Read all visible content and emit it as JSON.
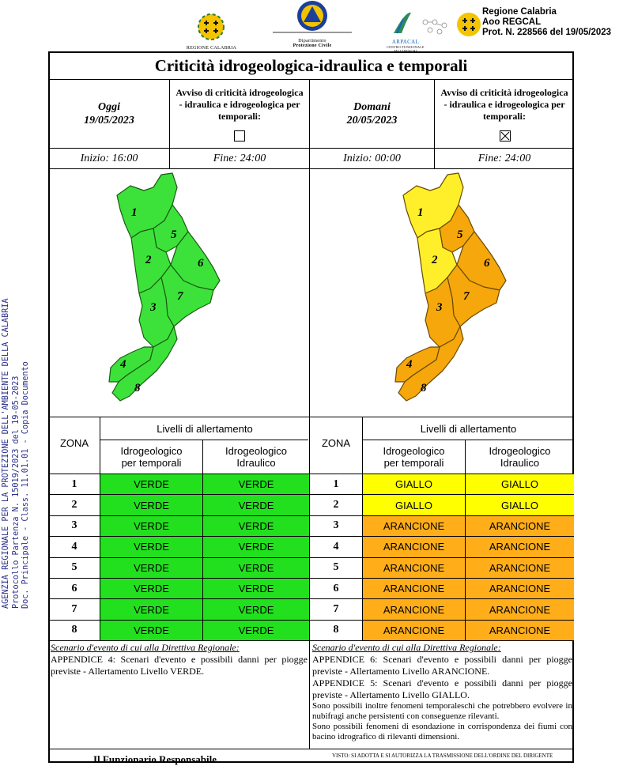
{
  "header": {
    "logo_left_caption": "REGIONE CALABRIA",
    "logo_center_caption_1": "Dipartimento",
    "logo_center_caption_2": "Protezione Civile",
    "logo_right_caption_1": "ARPACAL",
    "logo_right_caption_2": "CENTRO FUNZIONALE MULTIRISCHI",
    "protocol_line_1": "Regione Calabria",
    "protocol_line_2": "Aoo REGCAL",
    "protocol_line_3": "Prot. N. 228566 del 19/05/2023"
  },
  "side_stamp": {
    "line_1": "AGENZIA REGIONALE PER LA PROTEZIONE DELL'AMBIENTE DELLA CALABRIA",
    "line_2": "Protocollo Partenza N. 15019/2023 del 19-05-2023",
    "line_3": "Doc. Principale - Class. 11.01.01  - Copia Documento"
  },
  "title": "Criticità idrogeologica-idraulica e temporali",
  "today": {
    "label": "Oggi",
    "date": "19/05/2023",
    "avviso_text": "Avviso di criticità idrogeologica - idraulica e idrogeologica per temporali:",
    "avviso_checked": false,
    "start": "Inizio: 16:00",
    "end": "Fine: 24:00"
  },
  "tomorrow": {
    "label": "Domani",
    "date": "20/05/2023",
    "avviso_text": "Avviso di criticità idrogeologica - idraulica e idrogeologica per temporali:",
    "avviso_checked": true,
    "start": "Inizio: 00:00",
    "end": "Fine: 24:00"
  },
  "map_zone_labels": [
    "1",
    "2",
    "3",
    "4",
    "5",
    "6",
    "7",
    "8"
  ],
  "table_headers": {
    "zona": "ZONA",
    "livelli": "Livelli di allertamento",
    "col_temporali": "Idrogeologico per temporali",
    "col_idraulico": "Idrogeologico Idraulico"
  },
  "colors": {
    "verde": "#22e01e",
    "giallo": "#ffff00",
    "arancione": "#ffae1a",
    "map_green": "#3ce23a",
    "map_yellow": "#ffef2a",
    "map_orange": "#f5a70c"
  },
  "zones_today": [
    {
      "zona": "1",
      "temporali": "VERDE",
      "idraulico": "VERDE"
    },
    {
      "zona": "2",
      "temporali": "VERDE",
      "idraulico": "VERDE"
    },
    {
      "zona": "3",
      "temporali": "VERDE",
      "idraulico": "VERDE"
    },
    {
      "zona": "4",
      "temporali": "VERDE",
      "idraulico": "VERDE"
    },
    {
      "zona": "5",
      "temporali": "VERDE",
      "idraulico": "VERDE"
    },
    {
      "zona": "6",
      "temporali": "VERDE",
      "idraulico": "VERDE"
    },
    {
      "zona": "7",
      "temporali": "VERDE",
      "idraulico": "VERDE"
    },
    {
      "zona": "8",
      "temporali": "VERDE",
      "idraulico": "VERDE"
    }
  ],
  "zones_tomorrow": [
    {
      "zona": "1",
      "temporali": "GIALLO",
      "idraulico": "GIALLO"
    },
    {
      "zona": "2",
      "temporali": "GIALLO",
      "idraulico": "GIALLO"
    },
    {
      "zona": "3",
      "temporali": "ARANCIONE",
      "idraulico": "ARANCIONE"
    },
    {
      "zona": "4",
      "temporali": "ARANCIONE",
      "idraulico": "ARANCIONE"
    },
    {
      "zona": "5",
      "temporali": "ARANCIONE",
      "idraulico": "ARANCIONE"
    },
    {
      "zona": "6",
      "temporali": "ARANCIONE",
      "idraulico": "ARANCIONE"
    },
    {
      "zona": "7",
      "temporali": "ARANCIONE",
      "idraulico": "ARANCIONE"
    },
    {
      "zona": "8",
      "temporali": "ARANCIONE",
      "idraulico": "ARANCIONE"
    }
  ],
  "scenario_today": {
    "heading": "Scenario d'evento di cui alla Direttiva Regionale:",
    "text": "APPENDICE 4: Scenari d'evento e possibili danni per piogge previste - Allertamento Livello VERDE."
  },
  "scenario_tomorrow": {
    "heading": "Scenario d'evento di cui alla Direttiva Regionale:",
    "text_1": "APPENDICE 6: Scenari d'evento e possibili danni per piogge previste - Allertamento Livello ARANCIONE.",
    "text_2": "APPENDICE 5: Scenari d'evento e possibili danni per piogge previste - Allertamento Livello GIALLO.",
    "text_3": "Sono possibili inoltre fenomeni temporaleschi che potrebbero evolvere in nubifragi anche persistenti con conseguenze rilevanti.",
    "text_4": "Sono possibili fenomeni di esondazione in corrispondenza dei fiumi con bacino idrografico di rilevanti dimensioni."
  },
  "footer_left": "Il Funzionario Responsabile",
  "footer_right": "VISTO: SI ADOTTA E SI AUTORIZZA LA TRASMISSIONE DELL'ORDINE DEL DIRIGENTE"
}
